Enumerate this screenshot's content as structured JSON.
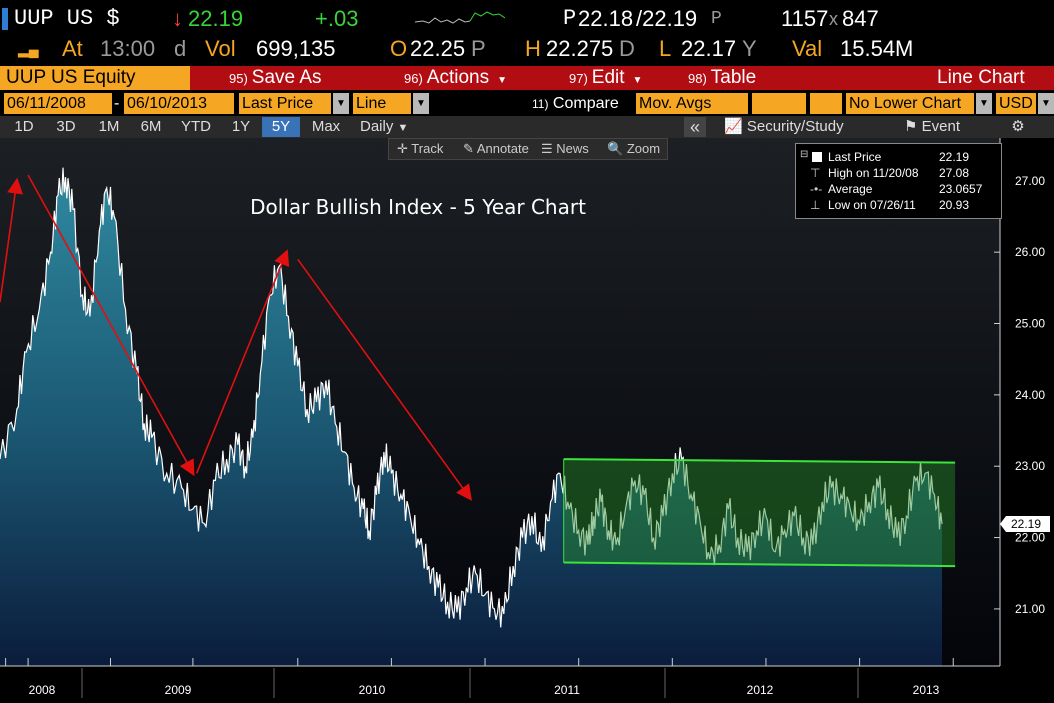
{
  "quote": {
    "ticker": "UUP US $",
    "arrow": "↓",
    "last": "22.19",
    "change": "+.03",
    "bid_label": "P",
    "bid": "22.18",
    "ask": "/22.19",
    "ask_suffix": "P",
    "size": "1157",
    "size_x": "x",
    "size2": "847",
    "at_label": "At",
    "time": "13:00",
    "time_suffix": "d",
    "vol_label": "Vol",
    "volume": "699,135",
    "open_label": "O",
    "open": "22.25",
    "open_suffix": "P",
    "high_label": "H",
    "high": "22.275",
    "high_suffix": "D",
    "low_label": "L",
    "low": "22.17",
    "low_suffix": "Y",
    "val_label": "Val",
    "value": "15.54M"
  },
  "menu": {
    "ticker_tab": "UUP US Equity",
    "items": [
      {
        "num": "95)",
        "label": "Save As"
      },
      {
        "num": "96)",
        "label": "Actions"
      },
      {
        "num": "97)",
        "label": "Edit"
      },
      {
        "num": "98)",
        "label": "Table"
      }
    ],
    "chart_type": "Line Chart"
  },
  "settings": {
    "start_date": "06/11/2008",
    "dash": "-",
    "end_date": "06/10/2013",
    "field": "Last Price",
    "style": "Line",
    "compare_num": "11)",
    "compare_label": "Compare",
    "mov_avgs": "Mov. Avgs",
    "lower_chart": "No Lower Chart",
    "currency": "USD"
  },
  "ranges": {
    "buttons": [
      "1D",
      "3D",
      "1M",
      "6M",
      "YTD",
      "1Y",
      "5Y",
      "Max"
    ],
    "active": "5Y",
    "frequency": "Daily",
    "collapse": "«",
    "security_study": "Security/Study",
    "event": "Event",
    "settings_icon": "gear-icon"
  },
  "toolbox": {
    "track": "Track",
    "annotate": "Annotate",
    "news": "News",
    "zoom": "Zoom"
  },
  "legend": {
    "rows": [
      {
        "label": "Last Price",
        "value": "22.19"
      },
      {
        "label": "High on 11/20/08",
        "value": "27.08"
      },
      {
        "label": "Average",
        "value": "23.0657"
      },
      {
        "label": "Low on 07/26/11",
        "value": "20.93"
      }
    ]
  },
  "colors": {
    "accent_amber": "#f5a623",
    "menu_red": "#b30d14",
    "up_green": "#3ad33a",
    "down_red": "#ff3c3c",
    "channel_green": "#39e639",
    "trend_arrow": "#e01010"
  },
  "chart_data": {
    "type": "area",
    "title": "Dollar Bullish Index - 5 Year Chart",
    "x_labels": [
      "2008",
      "2009",
      "2010",
      "2011",
      "2012",
      "2013"
    ],
    "y_ticks": [
      21.0,
      22.0,
      23.0,
      24.0,
      25.0,
      26.0,
      27.0
    ],
    "ylim": [
      20.2,
      27.6
    ],
    "x_range": [
      2008.41,
      2013.44
    ],
    "current_label": "22.19",
    "series": [
      {
        "x": [
          2008.41,
          2008.5,
          2008.55,
          2008.62,
          2008.68,
          2008.72,
          2008.76,
          2008.8,
          2008.85,
          2008.89,
          2008.94,
          2008.98,
          2009.02,
          2009.08,
          2009.14,
          2009.18,
          2009.22,
          2009.3,
          2009.38,
          2009.44,
          2009.5,
          2009.56,
          2009.62,
          2009.68,
          2009.72,
          2009.76,
          2009.8,
          2009.85,
          2009.9,
          2009.95,
          2010.0,
          2010.05,
          2010.1,
          2010.15,
          2010.2,
          2010.25,
          2010.3,
          2010.35,
          2010.38,
          2010.42,
          2010.46,
          2010.5,
          2010.55,
          2010.6,
          2010.65,
          2010.7,
          2010.75,
          2010.8,
          2010.85,
          2010.9,
          2010.95,
          2011.0,
          2011.05,
          2011.1,
          2011.15,
          2011.2,
          2011.25,
          2011.3,
          2011.35,
          2011.4,
          2011.45,
          2011.5,
          2011.55,
          2011.58,
          2011.62,
          2011.66,
          2011.7,
          2011.75,
          2011.8,
          2011.85,
          2011.9,
          2011.95,
          2012.0,
          2012.05,
          2012.1,
          2012.15,
          2012.2,
          2012.25,
          2012.3,
          2012.35,
          2012.4,
          2012.45,
          2012.5,
          2012.55,
          2012.6,
          2012.65,
          2012.7,
          2012.75,
          2012.8,
          2012.85,
          2012.9,
          2012.95,
          2013.0,
          2013.05,
          2013.1,
          2013.15,
          2013.2,
          2013.25,
          2013.3,
          2013.35,
          2013.4,
          2013.44
        ],
        "y": [
          23.1,
          23.8,
          24.6,
          25.2,
          26.0,
          26.8,
          27.05,
          26.6,
          25.4,
          25.1,
          26.3,
          26.9,
          26.5,
          25.2,
          24.3,
          23.6,
          23.4,
          22.9,
          22.7,
          22.4,
          22.2,
          22.8,
          23.1,
          23.3,
          23.0,
          23.4,
          24.3,
          25.4,
          25.8,
          25.1,
          24.4,
          23.8,
          23.9,
          24.2,
          23.6,
          23.2,
          22.7,
          22.4,
          22.1,
          22.6,
          23.2,
          22.9,
          22.6,
          22.3,
          21.9,
          21.6,
          21.3,
          21.1,
          20.95,
          21.3,
          21.5,
          21.2,
          21.0,
          20.93,
          21.6,
          22.0,
          22.3,
          21.8,
          22.5,
          22.9,
          22.4,
          22.1,
          21.9,
          22.3,
          22.5,
          22.1,
          21.9,
          22.4,
          22.8,
          22.6,
          22.0,
          22.3,
          22.9,
          23.1,
          22.6,
          22.2,
          21.7,
          21.9,
          22.4,
          22.0,
          21.8,
          22.1,
          22.3,
          21.8,
          22.1,
          22.3,
          22.0,
          21.9,
          22.5,
          22.7,
          22.6,
          22.4,
          22.2,
          22.5,
          22.7,
          22.4,
          22.0,
          22.3,
          22.8,
          22.9,
          22.6,
          22.19
        ]
      }
    ],
    "annotations": {
      "trend_arrows": [
        {
          "from": [
            2008.41,
            25.3
          ],
          "to": [
            2008.5,
            27.0
          ]
        },
        {
          "from": [
            2008.56,
            27.08
          ],
          "to": [
            2009.44,
            22.9
          ]
        },
        {
          "from": [
            2009.46,
            22.9
          ],
          "to": [
            2009.94,
            26.0
          ]
        },
        {
          "from": [
            2010.0,
            25.9
          ],
          "to": [
            2010.92,
            22.55
          ]
        }
      ],
      "channel": {
        "x": [
          2011.42,
          2013.51
        ],
        "upper": [
          23.1,
          23.05
        ],
        "lower": [
          21.65,
          21.6
        ]
      }
    }
  }
}
